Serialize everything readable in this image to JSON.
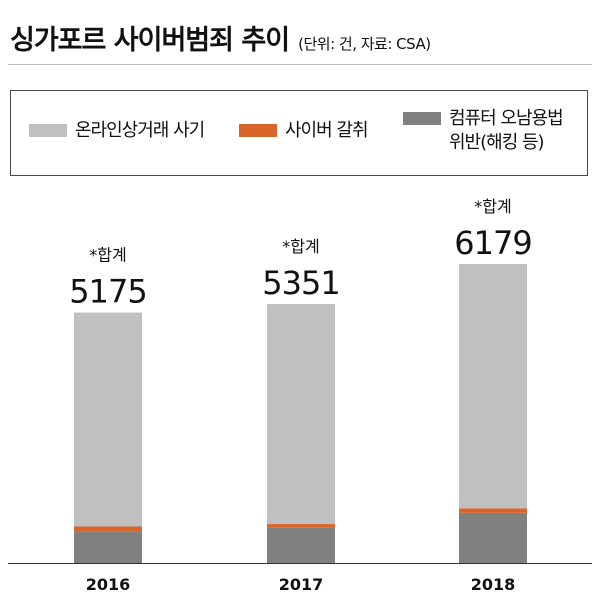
{
  "title": "싱가포르 사이버범죄 추이",
  "unit_note": "(단위: 건, 자료: CSA)",
  "legend": [
    {
      "label": "온라인상거래 사기",
      "color": "#c0c0c0"
    },
    {
      "label": "사이버 갈취",
      "color": "#d9652b"
    },
    {
      "label": "컴퓨터 오남용법\n위반(해킹 등)",
      "color": "#808080"
    }
  ],
  "chart_data": {
    "type": "bar",
    "stacked": true,
    "categories": [
      "2016",
      "2017",
      "2018"
    ],
    "series": [
      {
        "name": "컴퓨터 오남용법 위반(해킹 등)",
        "color": "#808080",
        "values": [
          653,
          738,
          1037
        ]
      },
      {
        "name": "사이버 갈취",
        "color": "#d9652b",
        "values": [
          101,
          67,
          94
        ]
      },
      {
        "name": "온라인상거래 사기",
        "color": "#c0c0c0",
        "values": [
          4421,
          4546,
          5048
        ]
      }
    ],
    "totals_label": "*합계",
    "totals": [
      5175,
      5351,
      6179
    ],
    "ylim": [
      0,
      6179
    ],
    "grid": false,
    "legend_position": "top"
  }
}
